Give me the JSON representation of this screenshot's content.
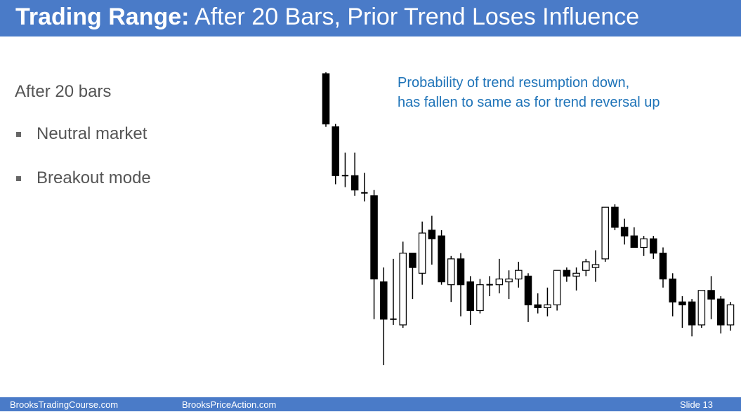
{
  "slide": {
    "title_bold": "Trading Range:",
    "title_rest": " After 20 Bars, Prior Trend Loses Influence",
    "heading": "After 20 bars",
    "bullets": [
      "Neutral market",
      "Breakout mode"
    ],
    "annotation_line1": "Probability of trend resumption down,",
    "annotation_line2": "has fallen to same as for trend reversal up",
    "footer_left": "BrooksTradingCourse.com",
    "footer_center": "BrooksPriceAction.com",
    "footer_right": "Slide  13",
    "colors": {
      "bar": "#4a7bc8",
      "annotation": "#1e73b8",
      "bull": "#ffffff",
      "bear": "#000000"
    }
  },
  "chart_data": {
    "type": "candlestick",
    "y_axis": "price (top of panel = 100, bottom = 0)",
    "ylim": [
      0,
      100
    ],
    "candles": [
      {
        "o": 99.5,
        "h": 100,
        "l": 81,
        "c": 82
      },
      {
        "o": 81,
        "h": 82,
        "l": 61,
        "c": 64
      },
      {
        "o": 64,
        "h": 72,
        "l": 60,
        "c": 64
      },
      {
        "o": 64,
        "h": 72,
        "l": 57,
        "c": 59
      },
      {
        "o": 58,
        "h": 65,
        "l": 55,
        "c": 58
      },
      {
        "o": 57,
        "h": 59,
        "l": 14,
        "c": 28
      },
      {
        "o": 27,
        "h": 32,
        "l": -2,
        "c": 14
      },
      {
        "o": 14,
        "h": 35,
        "l": 12,
        "c": 14
      },
      {
        "o": 12,
        "h": 41,
        "l": 11,
        "c": 37
      },
      {
        "o": 37,
        "h": 37,
        "l": 21,
        "c": 32
      },
      {
        "o": 30,
        "h": 48,
        "l": 26,
        "c": 44
      },
      {
        "o": 45,
        "h": 50,
        "l": 33,
        "c": 42
      },
      {
        "o": 43,
        "h": 45,
        "l": 26,
        "c": 27
      },
      {
        "o": 26,
        "h": 36,
        "l": 20,
        "c": 35
      },
      {
        "o": 35,
        "h": 37,
        "l": 15,
        "c": 26
      },
      {
        "o": 27,
        "h": 29,
        "l": 12,
        "c": 17
      },
      {
        "o": 17,
        "h": 28,
        "l": 16,
        "c": 26
      },
      {
        "o": 26,
        "h": 29,
        "l": 22,
        "c": 26
      },
      {
        "o": 26,
        "h": 35,
        "l": 23,
        "c": 28
      },
      {
        "o": 27,
        "h": 31,
        "l": 21,
        "c": 28
      },
      {
        "o": 28,
        "h": 34,
        "l": 25,
        "c": 31
      },
      {
        "o": 29,
        "h": 30,
        "l": 13,
        "c": 19
      },
      {
        "o": 19,
        "h": 23,
        "l": 16,
        "c": 18
      },
      {
        "o": 18,
        "h": 25,
        "l": 15,
        "c": 19
      },
      {
        "o": 19,
        "h": 31,
        "l": 17,
        "c": 31
      },
      {
        "o": 31,
        "h": 32,
        "l": 27,
        "c": 29
      },
      {
        "o": 29,
        "h": 32,
        "l": 24,
        "c": 30
      },
      {
        "o": 31,
        "h": 35,
        "l": 29,
        "c": 34
      },
      {
        "o": 32,
        "h": 38,
        "l": 27,
        "c": 33
      },
      {
        "o": 35,
        "h": 53,
        "l": 34,
        "c": 53
      },
      {
        "o": 53,
        "h": 54,
        "l": 45,
        "c": 46
      },
      {
        "o": 46,
        "h": 49,
        "l": 40,
        "c": 43
      },
      {
        "o": 43,
        "h": 46,
        "l": 39,
        "c": 39
      },
      {
        "o": 39,
        "h": 43,
        "l": 36,
        "c": 42
      },
      {
        "o": 42,
        "h": 43,
        "l": 35,
        "c": 37
      },
      {
        "o": 37,
        "h": 39,
        "l": 25,
        "c": 28
      },
      {
        "o": 28,
        "h": 30,
        "l": 15,
        "c": 20
      },
      {
        "o": 20,
        "h": 22,
        "l": 11,
        "c": 19
      },
      {
        "o": 20,
        "h": 21,
        "l": 8,
        "c": 12
      },
      {
        "o": 12,
        "h": 24,
        "l": 11,
        "c": 24
      },
      {
        "o": 24,
        "h": 29,
        "l": 14,
        "c": 21
      },
      {
        "o": 21,
        "h": 22,
        "l": 9,
        "c": 12
      },
      {
        "o": 12,
        "h": 20,
        "l": 10,
        "c": 19
      }
    ]
  }
}
